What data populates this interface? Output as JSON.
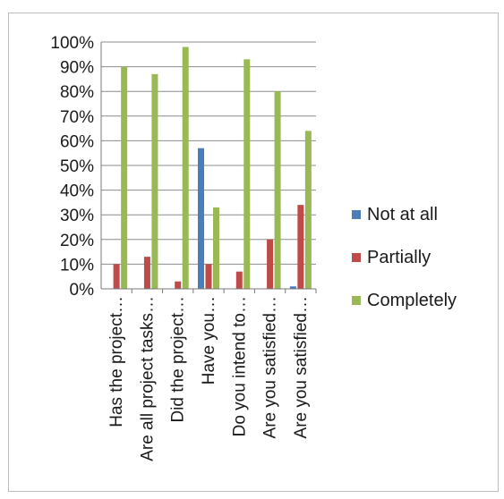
{
  "chart_data": {
    "type": "bar",
    "categories": [
      "Has the project…",
      "Are all project tasks…",
      "Did the project…",
      "Have you…",
      "Do you intend to…",
      "Are you satisfied…",
      "Are you satisfied…"
    ],
    "series": [
      {
        "name": "Not at all",
        "color": "#4a7ebb",
        "values": [
          0,
          0,
          0,
          57,
          0,
          0,
          1
        ]
      },
      {
        "name": "Partially",
        "color": "#be4b48",
        "values": [
          10,
          13,
          3,
          10,
          7,
          20,
          34
        ]
      },
      {
        "name": "Completely",
        "color": "#98b954",
        "values": [
          90,
          87,
          98,
          33,
          93,
          80,
          64
        ]
      }
    ],
    "ylim": [
      0,
      100
    ],
    "y_tick_step": 10,
    "y_ticks": [
      "0%",
      "10%",
      "20%",
      "30%",
      "40%",
      "50%",
      "60%",
      "70%",
      "80%",
      "90%",
      "100%"
    ],
    "grid": true,
    "legend_position": "right"
  }
}
